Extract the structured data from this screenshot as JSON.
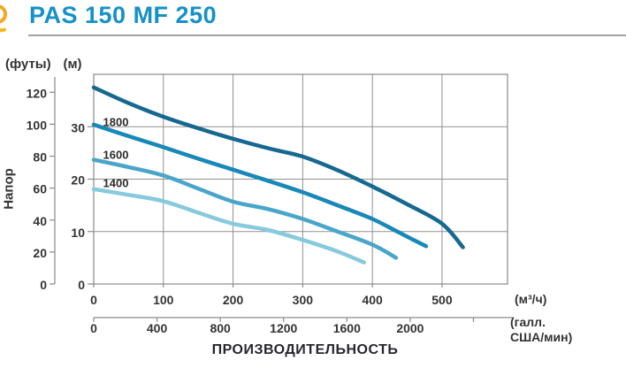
{
  "header": {
    "title": "PAS 150 MF 250"
  },
  "colors": {
    "title": "#1591c8",
    "logo": "#f2a71e",
    "grid": "#909090",
    "text": "#333333"
  },
  "chart_data": {
    "type": "line",
    "title": "PAS 150 MF 250",
    "xlabel": "ПРОИЗВОДИТЕЛЬНОСТЬ",
    "ylabel": "Напор",
    "grid": true,
    "legend": "inline curve labels",
    "x_axis_primary": {
      "unit": "(м³/ч)",
      "ticks": [
        0,
        100,
        200,
        300,
        400,
        500
      ],
      "max": 594
    },
    "x_axis_secondary": {
      "unit_line1": "(галл.",
      "unit_line2": "США/мин)",
      "ticks": [
        0,
        400,
        800,
        1200,
        1600,
        2000
      ],
      "unlabeled_ticks": [
        2400
      ],
      "gal_per_m3h": 4.40287
    },
    "y_axis_primary": {
      "unit": "(м)",
      "ticks": [
        0,
        10,
        20,
        30
      ],
      "max": 40
    },
    "y_axis_secondary": {
      "unit": "(футы)",
      "ticks": [
        0,
        20,
        40,
        60,
        80,
        100,
        120
      ],
      "ft_per_m": 3.28084
    },
    "series": [
      {
        "label": "",
        "color": "#166890",
        "points": [
          [
            0,
            37.5
          ],
          [
            50,
            34.5
          ],
          [
            100,
            31.9
          ],
          [
            150,
            29.7
          ],
          [
            200,
            27.7
          ],
          [
            250,
            25.9
          ],
          [
            300,
            24.3
          ],
          [
            350,
            21.7
          ],
          [
            400,
            18.6
          ],
          [
            450,
            15.2
          ],
          [
            500,
            11.5
          ],
          [
            530,
            7.0
          ]
        ]
      },
      {
        "label": "1800",
        "color": "#1888b8",
        "points": [
          [
            0,
            30.4
          ],
          [
            50,
            28.2
          ],
          [
            100,
            26.1
          ],
          [
            150,
            23.9
          ],
          [
            200,
            21.8
          ],
          [
            250,
            19.7
          ],
          [
            300,
            17.5
          ],
          [
            350,
            15.0
          ],
          [
            400,
            12.4
          ],
          [
            440,
            9.7
          ],
          [
            477,
            7.2
          ]
        ]
      },
      {
        "label": "1600",
        "color": "#49a5c9",
        "points": [
          [
            0,
            23.7
          ],
          [
            50,
            22.3
          ],
          [
            100,
            20.7
          ],
          [
            150,
            18.2
          ],
          [
            200,
            15.7
          ],
          [
            250,
            14.3
          ],
          [
            300,
            12.4
          ],
          [
            350,
            10.0
          ],
          [
            400,
            7.5
          ],
          [
            434,
            5.0
          ]
        ]
      },
      {
        "label": "1400",
        "color": "#87c9dd",
        "points": [
          [
            0,
            18.1
          ],
          [
            50,
            17.0
          ],
          [
            100,
            15.8
          ],
          [
            150,
            13.6
          ],
          [
            200,
            11.5
          ],
          [
            250,
            10.3
          ],
          [
            300,
            8.4
          ],
          [
            350,
            6.2
          ],
          [
            388,
            4.1
          ]
        ]
      }
    ]
  }
}
